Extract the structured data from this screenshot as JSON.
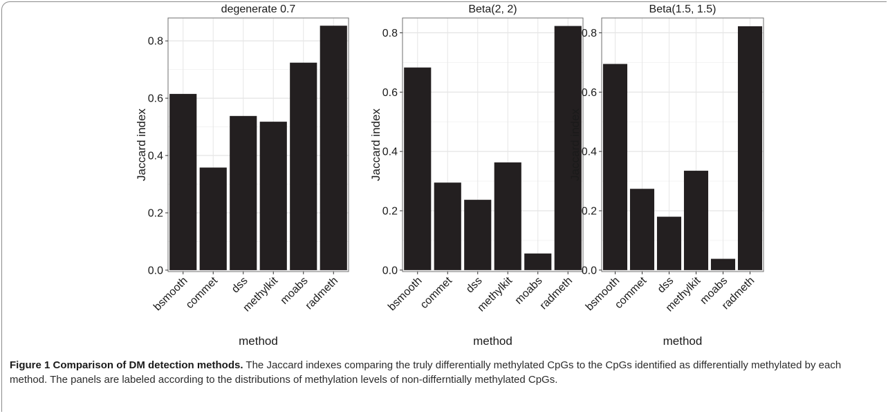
{
  "chart_data": [
    {
      "type": "bar",
      "title": "degenerate 0.7",
      "xlabel": "method",
      "ylabel": "Jaccard index",
      "categories": [
        "bsmooth",
        "commet",
        "dss",
        "methylkit",
        "moabs",
        "radmeth"
      ],
      "values": [
        0.615,
        0.358,
        0.538,
        0.518,
        0.724,
        0.853
      ],
      "ylim": [
        -0.005,
        0.88
      ],
      "yticks": [
        "0.0",
        "0.2",
        "0.4",
        "0.6",
        "0.8"
      ],
      "grid": true,
      "bar_color": "#231f20"
    },
    {
      "type": "bar",
      "title": "Beta(2, 2)",
      "xlabel": "method",
      "ylabel": "Jaccard index",
      "categories": [
        "bsmooth",
        "commet",
        "dss",
        "methylkit",
        "moabs",
        "radmeth"
      ],
      "values": [
        0.683,
        0.295,
        0.237,
        0.363,
        0.056,
        0.823
      ],
      "ylim": [
        -0.005,
        0.85
      ],
      "yticks": [
        "0.0",
        "0.2",
        "0.4",
        "0.6",
        "0.8"
      ],
      "grid": true,
      "bar_color": "#231f20"
    },
    {
      "type": "bar",
      "title": "Beta(1.5, 1.5)",
      "xlabel": "method",
      "ylabel": "Jaccard index",
      "categories": [
        "bsmooth",
        "commet",
        "dss",
        "methylkit",
        "moabs",
        "radmeth"
      ],
      "values": [
        0.695,
        0.274,
        0.18,
        0.335,
        0.038,
        0.822
      ],
      "ylim": [
        -0.005,
        0.85
      ],
      "yticks": [
        "0.0",
        "0.2",
        "0.4",
        "0.6",
        "0.8"
      ],
      "grid": true,
      "bar_color": "#231f20"
    }
  ],
  "caption": {
    "title": "Figure 1 Comparison of DM detection methods.",
    "text": " The Jaccard indexes comparing the truly differentially methylated CpGs to the CpGs identified as differentially methylated by each method. The panels are labeled according to the distributions of methylation levels of non-differntially methylated CpGs."
  }
}
